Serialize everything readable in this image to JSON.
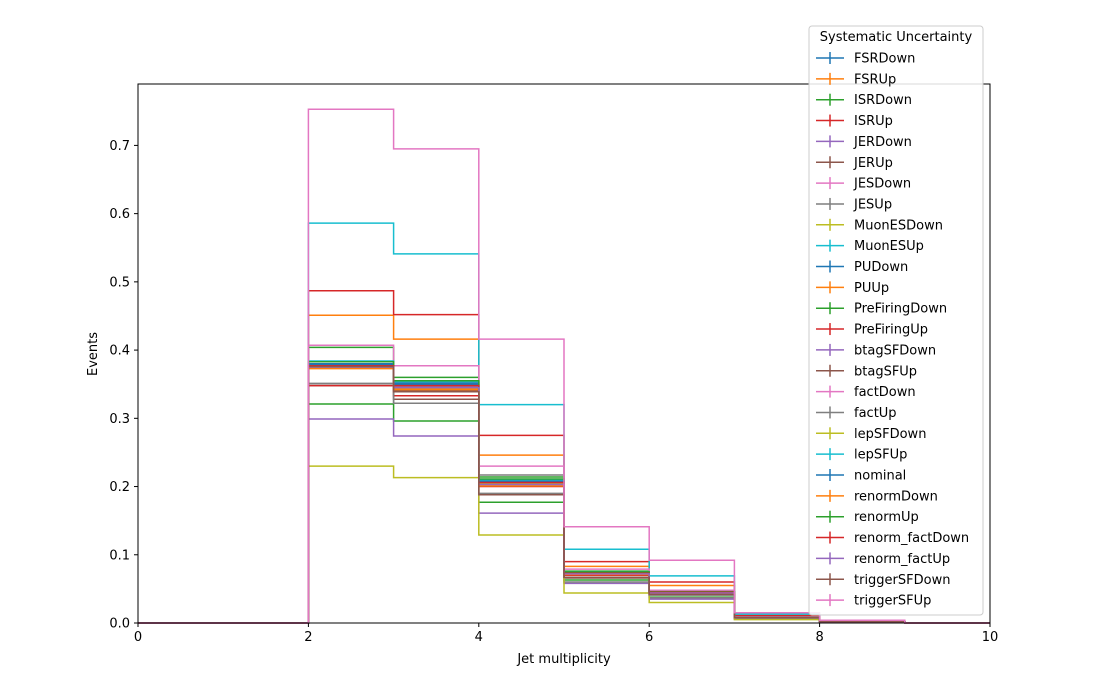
{
  "chart_data": {
    "type": "line",
    "step": true,
    "xlabel": "Jet multiplicity",
    "ylabel": "Events",
    "xlim": [
      0,
      10
    ],
    "ylim": [
      0,
      0.79
    ],
    "xticks": [
      0,
      2,
      4,
      6,
      8,
      10
    ],
    "yticks": [
      0.0,
      0.1,
      0.2,
      0.3,
      0.4,
      0.5,
      0.6,
      0.7
    ],
    "bin_edges": [
      0,
      1,
      2,
      3,
      4,
      5,
      6,
      7,
      8,
      9,
      10
    ],
    "grid": false,
    "legend_title": "Systematic Uncertainty",
    "legend_location": "top-right",
    "series": [
      {
        "name": "FSRDown",
        "color": "#1f77b4",
        "values": [
          0,
          0,
          0.383,
          0.352,
          0.21,
          0.075,
          0.045,
          0.008,
          0.002,
          0.0
        ]
      },
      {
        "name": "FSRUp",
        "color": "#ff7f0e",
        "values": [
          0,
          0,
          0.451,
          0.416,
          0.246,
          0.083,
          0.055,
          0.01,
          0.002,
          0.0
        ]
      },
      {
        "name": "ISRDown",
        "color": "#2ca02c",
        "values": [
          0,
          0,
          0.321,
          0.296,
          0.177,
          0.063,
          0.038,
          0.007,
          0.002,
          0.0
        ]
      },
      {
        "name": "ISRUp",
        "color": "#d62728",
        "values": [
          0,
          0,
          0.487,
          0.452,
          0.275,
          0.09,
          0.06,
          0.011,
          0.002,
          0.0
        ]
      },
      {
        "name": "JERDown",
        "color": "#9467bd",
        "values": [
          0,
          0,
          0.299,
          0.274,
          0.161,
          0.058,
          0.035,
          0.006,
          0.002,
          0.0
        ]
      },
      {
        "name": "JERUp",
        "color": "#8c564b",
        "values": [
          0,
          0,
          0.348,
          0.328,
          0.188,
          0.066,
          0.041,
          0.008,
          0.002,
          0.0
        ]
      },
      {
        "name": "JESDown",
        "color": "#e377c2",
        "values": [
          0,
          0,
          0.376,
          0.346,
          0.207,
          0.072,
          0.044,
          0.008,
          0.002,
          0.0
        ]
      },
      {
        "name": "JESUp",
        "color": "#7f7f7f",
        "values": [
          0,
          0,
          0.351,
          0.322,
          0.217,
          0.06,
          0.037,
          0.007,
          0.002,
          0.0
        ]
      },
      {
        "name": "MuonESDown",
        "color": "#bcbd22",
        "values": [
          0,
          0,
          0.23,
          0.213,
          0.129,
          0.044,
          0.03,
          0.005,
          0.001,
          0.0
        ]
      },
      {
        "name": "MuonESUp",
        "color": "#17becf",
        "values": [
          0,
          0,
          0.586,
          0.541,
          0.32,
          0.108,
          0.069,
          0.013,
          0.003,
          0.0
        ]
      },
      {
        "name": "PUDown",
        "color": "#1f77b4",
        "values": [
          0,
          0,
          0.38,
          0.35,
          0.208,
          0.074,
          0.045,
          0.008,
          0.002,
          0.0
        ]
      },
      {
        "name": "PUUp",
        "color": "#ff7f0e",
        "values": [
          0,
          0,
          0.373,
          0.344,
          0.204,
          0.072,
          0.044,
          0.008,
          0.002,
          0.0
        ]
      },
      {
        "name": "PreFiringDown",
        "color": "#2ca02c",
        "values": [
          0,
          0,
          0.404,
          0.36,
          0.214,
          0.076,
          0.046,
          0.009,
          0.002,
          0.0
        ]
      },
      {
        "name": "PreFiringUp",
        "color": "#d62728",
        "values": [
          0,
          0,
          0.348,
          0.333,
          0.2,
          0.07,
          0.043,
          0.008,
          0.002,
          0.0
        ]
      },
      {
        "name": "btagSFDown",
        "color": "#9467bd",
        "values": [
          0,
          0,
          0.378,
          0.347,
          0.205,
          0.073,
          0.044,
          0.008,
          0.002,
          0.0
        ]
      },
      {
        "name": "btagSFUp",
        "color": "#8c564b",
        "values": [
          0,
          0,
          0.377,
          0.341,
          0.203,
          0.072,
          0.043,
          0.008,
          0.002,
          0.0
        ]
      },
      {
        "name": "factDown",
        "color": "#e377c2",
        "values": [
          0,
          0,
          0.407,
          0.377,
          0.23,
          0.079,
          0.048,
          0.009,
          0.002,
          0.0
        ]
      },
      {
        "name": "factUp",
        "color": "#7f7f7f",
        "values": [
          0,
          0,
          0.351,
          0.322,
          0.19,
          0.067,
          0.041,
          0.008,
          0.002,
          0.0
        ]
      },
      {
        "name": "lepSFDown",
        "color": "#bcbd22",
        "values": [
          0,
          0,
          0.374,
          0.345,
          0.204,
          0.072,
          0.044,
          0.008,
          0.002,
          0.0
        ]
      },
      {
        "name": "lepSFUp",
        "color": "#17becf",
        "values": [
          0,
          0,
          0.384,
          0.354,
          0.21,
          0.075,
          0.045,
          0.008,
          0.002,
          0.0
        ]
      },
      {
        "name": "nominal",
        "color": "#1f77b4",
        "values": [
          0,
          0,
          0.379,
          0.349,
          0.207,
          0.073,
          0.045,
          0.008,
          0.002,
          0.0
        ]
      },
      {
        "name": "renormDown",
        "color": "#ff7f0e",
        "values": [
          0,
          0,
          0.373,
          0.342,
          0.201,
          0.071,
          0.043,
          0.008,
          0.002,
          0.0
        ]
      },
      {
        "name": "renormUp",
        "color": "#2ca02c",
        "values": [
          0,
          0,
          0.383,
          0.355,
          0.211,
          0.075,
          0.046,
          0.008,
          0.002,
          0.0
        ]
      },
      {
        "name": "renorm_factDown",
        "color": "#d62728",
        "values": [
          0,
          0,
          0.377,
          0.348,
          0.206,
          0.073,
          0.045,
          0.008,
          0.002,
          0.0
        ]
      },
      {
        "name": "renorm_factUp",
        "color": "#9467bd",
        "values": [
          0,
          0,
          0.375,
          0.345,
          0.203,
          0.072,
          0.044,
          0.008,
          0.002,
          0.0
        ]
      },
      {
        "name": "triggerSFDown",
        "color": "#8c564b",
        "values": [
          0,
          0,
          0.376,
          0.339,
          0.188,
          0.067,
          0.042,
          0.008,
          0.002,
          0.0
        ]
      },
      {
        "name": "triggerSFUp",
        "color": "#e377c2",
        "values": [
          0,
          0,
          0.753,
          0.695,
          0.416,
          0.141,
          0.092,
          0.015,
          0.004,
          0.0
        ]
      }
    ]
  }
}
